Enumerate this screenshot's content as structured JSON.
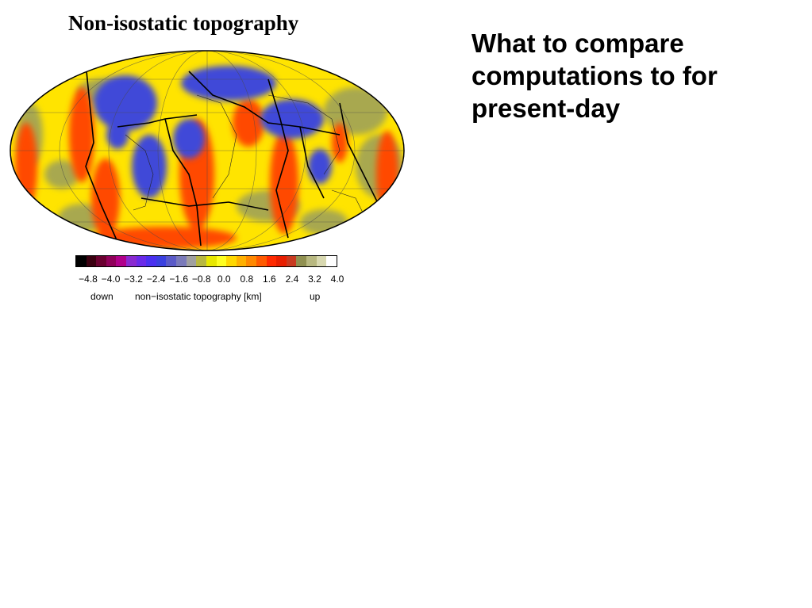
{
  "slide": {
    "map_title": "Non-isostatic topography",
    "heading": "What to compare computations to for present-day"
  },
  "colorbar": {
    "colors": [
      "#000000",
      "#3a0010",
      "#6a0030",
      "#90005a",
      "#b0008a",
      "#8a2ad0",
      "#6a2ae8",
      "#4a30f0",
      "#3a40e0",
      "#5a5ac8",
      "#7a7aba",
      "#a0a0a0",
      "#b8b840",
      "#e8e800",
      "#ffff20",
      "#ffd800",
      "#ffb000",
      "#ff8800",
      "#ff5a00",
      "#ff2a00",
      "#e81e00",
      "#c83a20",
      "#909050",
      "#b8b880",
      "#d8d8b0",
      "#ffffff"
    ],
    "ticks": [
      "−4.8",
      "−4.0",
      "−3.2",
      "−2.4",
      "−1.6",
      "−0.8",
      "0.0",
      "0.8",
      "1.6",
      "2.4",
      "3.2",
      "4.0"
    ],
    "label_down": "down",
    "label_unit": "non−isostatic topography [km]",
    "label_up": "up"
  },
  "map": {
    "projection": "mollweide",
    "ocean_base_color": "#ffe400",
    "high_color": "#ff3a00",
    "low_color": "#4048d8",
    "neutral_color": "#a8a850"
  }
}
